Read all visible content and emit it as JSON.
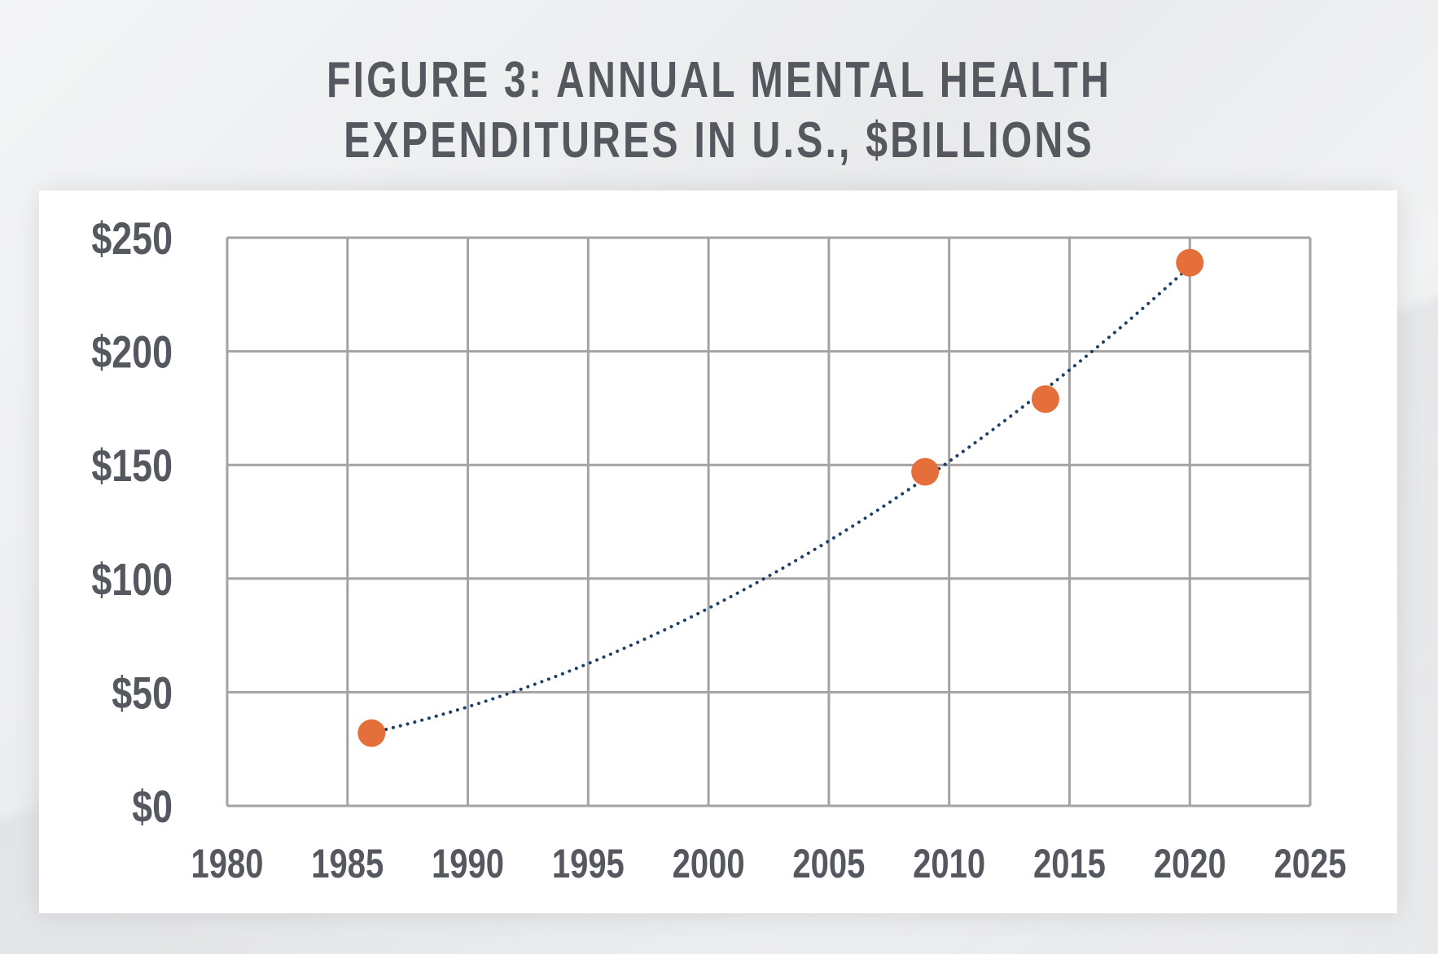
{
  "title": {
    "line1": "FIGURE 3: ANNUAL MENTAL HEALTH",
    "line2": "EXPENDITURES IN U.S., $BILLIONS"
  },
  "colors": {
    "text": "#55595f",
    "grid": "#a3a3a3",
    "point": "#e56f3b",
    "trend": "#1e3f66"
  },
  "chart_data": {
    "type": "scatter",
    "title": "FIGURE 3: ANNUAL MENTAL HEALTH EXPENDITURES IN U.S., $BILLIONS",
    "xlabel": "",
    "ylabel": "",
    "xlim": [
      1980,
      2025
    ],
    "ylim": [
      0,
      250
    ],
    "grid": true,
    "x_ticks": [
      1980,
      1985,
      1990,
      1995,
      2000,
      2005,
      2010,
      2015,
      2020,
      2025
    ],
    "y_ticks": [
      0,
      50,
      100,
      150,
      200,
      250
    ],
    "y_tick_labels": [
      "$0",
      "$50",
      "$100",
      "$150",
      "$200",
      "$250"
    ],
    "points": [
      {
        "x": 1986,
        "y": 32
      },
      {
        "x": 2009,
        "y": 147
      },
      {
        "x": 2014,
        "y": 179
      },
      {
        "x": 2020,
        "y": 239
      }
    ],
    "trendline": {
      "style": "dotted",
      "type": "polynomial"
    }
  }
}
